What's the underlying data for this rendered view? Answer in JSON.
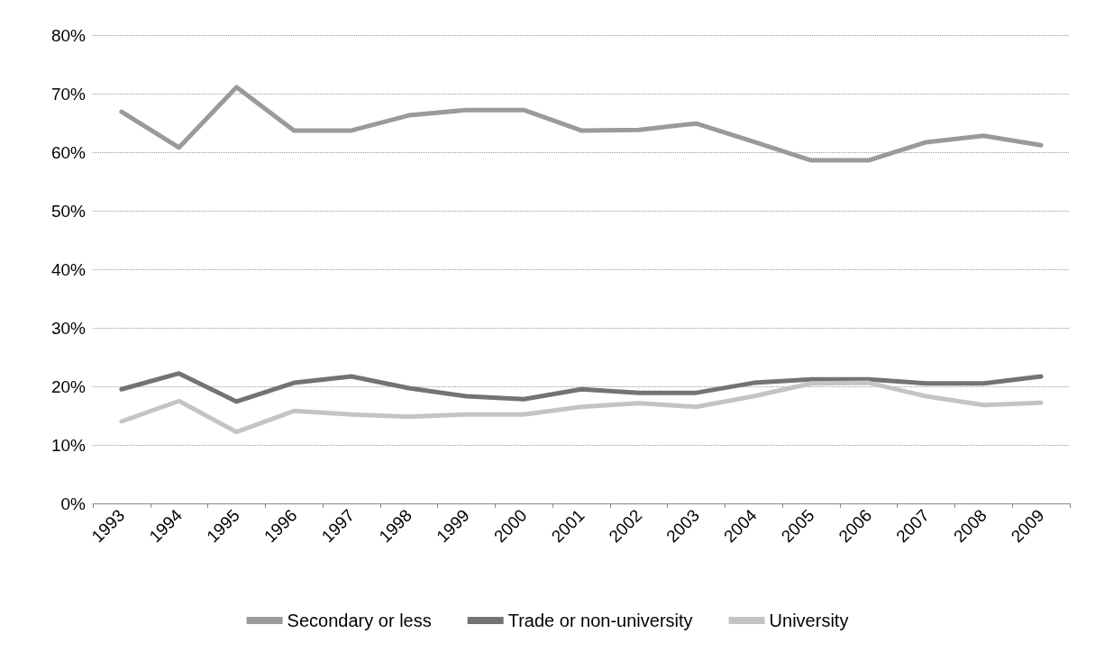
{
  "chart_data": {
    "type": "line",
    "categories": [
      "1993",
      "1994",
      "1995",
      "1996",
      "1997",
      "1998",
      "1999",
      "2000",
      "2001",
      "2002",
      "2003",
      "2004",
      "2005",
      "2006",
      "2007",
      "2008",
      "2009"
    ],
    "series": [
      {
        "name": "Secondary or less",
        "color": "#9a9a9a",
        "values": [
          66.9,
          60.8,
          71.1,
          63.7,
          63.7,
          66.3,
          67.2,
          67.2,
          63.7,
          63.8,
          64.9,
          61.8,
          58.6,
          58.6,
          61.7,
          62.8,
          61.2
        ]
      },
      {
        "name": "Trade or non-university",
        "color": "#737373",
        "values": [
          19.5,
          22.2,
          17.4,
          20.6,
          21.7,
          19.7,
          18.3,
          17.8,
          19.5,
          18.9,
          18.9,
          20.6,
          21.2,
          21.2,
          20.5,
          20.5,
          21.7
        ]
      },
      {
        "name": "University",
        "color": "#c4c4c4",
        "values": [
          14.0,
          17.5,
          12.2,
          15.8,
          15.2,
          14.8,
          15.2,
          15.2,
          16.5,
          17.1,
          16.5,
          18.3,
          20.5,
          20.6,
          18.3,
          16.8,
          17.2
        ]
      }
    ],
    "ylim": [
      0,
      80
    ],
    "yticks": [
      {
        "value": 0,
        "label": "0%"
      },
      {
        "value": 10,
        "label": "10%"
      },
      {
        "value": 20,
        "label": "20%"
      },
      {
        "value": 30,
        "label": "30%"
      },
      {
        "value": 40,
        "label": "40%"
      },
      {
        "value": 50,
        "label": "50%"
      },
      {
        "value": 60,
        "label": "60%"
      },
      {
        "value": 70,
        "label": "70%"
      },
      {
        "value": 80,
        "label": "80%"
      }
    ],
    "grid": "y",
    "legend": "bottom",
    "marker": "none",
    "line_style": "solid"
  }
}
